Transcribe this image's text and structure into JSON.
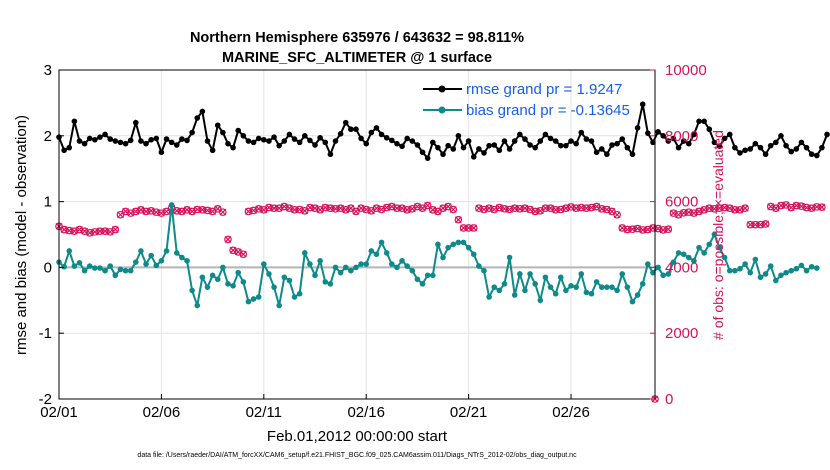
{
  "chart_data": {
    "type": "line",
    "title": "Northern Hemisphere 635976 / 643632 = 98.811%",
    "subtitle": "MARINE_SFC_ALTIMETER @ 1 surface",
    "xlabel": "Feb.01,2012 00:00:00 start",
    "ylabel": "rmse and bias (model - observation)",
    "ylabel_right": "# of obs: o=possible; ×=evaluated",
    "x_tick_labels": [
      "02/01",
      "02/06",
      "02/11",
      "02/16",
      "02/21",
      "02/26"
    ],
    "x_ticks": [
      1,
      6,
      11,
      16,
      21,
      26
    ],
    "xlim": [
      1,
      30.1
    ],
    "ylim": [
      -2,
      3
    ],
    "y_ticks": [
      -2,
      -1,
      0,
      1,
      2,
      3
    ],
    "ylim_right": [
      0,
      10000
    ],
    "y_ticks_right": [
      0,
      2000,
      4000,
      6000,
      8000,
      10000
    ],
    "grid": true,
    "legend_position": "top-right",
    "footnote": "data file: /Users/raeder/DAI/ATM_forcXX/CAM6_setup/f.e21.FHIST_BGC.f09_025.CAM6assim.011/Diags_NTrS_2012-02/obs_diag_output.nc",
    "colors": {
      "rmse": "#000000",
      "bias": "#0f8a8a",
      "obs": "#d4145a",
      "legend_text": "#1560e8"
    },
    "series": [
      {
        "name": "rmse grand pr = 1.9247",
        "axis": "left",
        "x_start": 1.0,
        "x_step": 0.25,
        "values": [
          1.98,
          1.78,
          1.82,
          2.22,
          1.92,
          1.88,
          1.96,
          1.94,
          1.98,
          2.02,
          1.95,
          1.92,
          1.9,
          1.88,
          1.93,
          2.2,
          1.92,
          1.88,
          1.94,
          1.96,
          1.75,
          1.95,
          1.9,
          1.86,
          1.95,
          1.93,
          2.05,
          2.27,
          2.37,
          1.92,
          1.78,
          2.16,
          2.05,
          1.88,
          1.82,
          2.08,
          2.0,
          1.92,
          1.9,
          1.96,
          1.94,
          1.92,
          1.98,
          1.85,
          1.92,
          2.02,
          1.95,
          1.9,
          2.0,
          1.93,
          1.86,
          1.97,
          1.9,
          1.72,
          1.92,
          2.03,
          2.2,
          2.1,
          2.1,
          1.96,
          1.88,
          2.05,
          2.12,
          2.02,
          1.97,
          1.93,
          1.88,
          1.84,
          1.96,
          1.92,
          1.86,
          1.75,
          1.66,
          1.9,
          1.82,
          1.72,
          1.85,
          1.8,
          2.0,
          1.82,
          1.92,
          1.68,
          1.8,
          1.74,
          1.85,
          1.86,
          1.78,
          1.92,
          1.8,
          1.92,
          2.02,
          1.95,
          1.86,
          1.82,
          1.92,
          2.02,
          1.96,
          1.92,
          1.85,
          1.85,
          1.92,
          1.88,
          2.05,
          1.95,
          1.92,
          1.75,
          1.8,
          1.72,
          1.86,
          1.88,
          1.95,
          1.82,
          1.72,
          2.12,
          2.48,
          2.04,
          1.9,
          2.06,
          2.0,
          1.92,
          1.96,
          1.82,
          1.92,
          1.88,
          2.02,
          2.22,
          2.22,
          2.1,
          1.9,
          1.84,
          1.96,
          2.02,
          1.82,
          1.74,
          1.78,
          1.8,
          1.88,
          1.82,
          1.72,
          1.85,
          1.9,
          2.0,
          1.85,
          1.76,
          1.8,
          1.9,
          1.82,
          1.72,
          1.7,
          1.82,
          2.02
        ]
      },
      {
        "name": "bias grand pr = -0.13645",
        "axis": "left",
        "x_start": 1.0,
        "x_step": 0.25,
        "values": [
          0.08,
          0.01,
          0.25,
          0.02,
          0.07,
          -0.05,
          0.02,
          -0.01,
          -0.01,
          -0.05,
          0.02,
          -0.12,
          -0.03,
          -0.05,
          -0.05,
          0.08,
          0.25,
          0.05,
          0.18,
          0.03,
          0.1,
          0.25,
          0.95,
          0.22,
          0.15,
          0.1,
          -0.35,
          -0.58,
          -0.15,
          -0.3,
          -0.12,
          -0.18,
          0.0,
          -0.25,
          -0.28,
          -0.08,
          -0.22,
          -0.52,
          -0.48,
          -0.45,
          0.05,
          -0.1,
          -0.3,
          -0.58,
          -0.15,
          -0.2,
          -0.45,
          -0.4,
          0.22,
          0.05,
          -0.12,
          0.1,
          -0.22,
          -0.25,
          0.0,
          -0.08,
          0.0,
          -0.05,
          0.0,
          0.05,
          0.05,
          0.25,
          0.2,
          0.38,
          0.22,
          0.05,
          0.0,
          0.1,
          0.02,
          -0.05,
          -0.18,
          -0.25,
          -0.12,
          -0.12,
          0.35,
          0.15,
          0.3,
          0.35,
          0.38,
          0.38,
          0.3,
          0.2,
          0.02,
          -0.05,
          -0.45,
          -0.3,
          -0.35,
          -0.25,
          0.15,
          -0.42,
          -0.1,
          -0.35,
          -0.1,
          -0.25,
          -0.5,
          -0.15,
          -0.3,
          -0.4,
          -0.15,
          -0.35,
          -0.28,
          -0.3,
          -0.1,
          -0.38,
          -0.4,
          -0.22,
          -0.3,
          -0.3,
          -0.3,
          -0.35,
          -0.1,
          -0.3,
          -0.52,
          -0.42,
          -0.25,
          0.05,
          -0.08,
          0.0,
          -0.12,
          -0.1,
          0.08,
          0.22,
          0.2,
          0.15,
          0.1,
          0.3,
          0.22,
          0.35,
          0.5,
          0.3,
          0.15,
          -0.05,
          -0.05,
          -0.02,
          0.05,
          -0.08,
          0.12,
          -0.15,
          -0.1,
          0.02,
          -0.2,
          -0.12,
          -0.08,
          -0.05,
          -0.02,
          0.03,
          -0.05,
          0.01,
          -0.01
        ]
      },
      {
        "name": "obs count",
        "axis": "right",
        "x_start": 1.0,
        "x_step": 0.25,
        "values": [
          5250,
          5150,
          5120,
          5100,
          5150,
          5100,
          5050,
          5080,
          5100,
          5100,
          5080,
          5150,
          5600,
          5700,
          5650,
          5700,
          5750,
          5700,
          5720,
          5680,
          5650,
          5700,
          5800,
          5720,
          5700,
          5750,
          5700,
          5760,
          5750,
          5730,
          5700,
          5780,
          5680,
          4850,
          4520,
          4470,
          4400,
          5700,
          5730,
          5780,
          5750,
          5820,
          5800,
          5800,
          5850,
          5800,
          5750,
          5760,
          5720,
          5820,
          5800,
          5750,
          5820,
          5800,
          5780,
          5800,
          5750,
          5800,
          5700,
          5800,
          5760,
          5720,
          5800,
          5760,
          5820,
          5850,
          5800,
          5800,
          5750,
          5780,
          5850,
          5800,
          5880,
          5750,
          5700,
          5800,
          5850,
          5760,
          5450,
          5200,
          5200,
          5200,
          5800,
          5760,
          5800,
          5760,
          5820,
          5780,
          5760,
          5800,
          5780,
          5800,
          5760,
          5700,
          5720,
          5800,
          5800,
          5750,
          5760,
          5800,
          5840,
          5800,
          5820,
          5800,
          5820,
          5850,
          5780,
          5760,
          5700,
          5600,
          5200,
          5150,
          5160,
          5180,
          5140,
          5150,
          5200,
          5180,
          5140,
          5160,
          5650,
          5600,
          5660,
          5680,
          5650,
          5700,
          5750,
          5800,
          5780,
          5800,
          5820,
          5800,
          5750,
          5750,
          5800,
          5300,
          5300,
          5300,
          5320,
          5850,
          5800,
          5880,
          5900,
          5820,
          5880,
          5860,
          5820,
          5800,
          5840,
          5830
        ]
      }
    ]
  }
}
